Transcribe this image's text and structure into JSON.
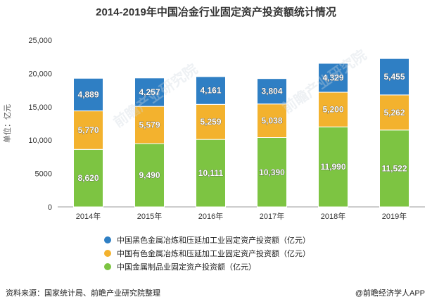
{
  "chart_data": {
    "type": "bar",
    "stacked": true,
    "title": "2014-2019年中国冶金行业固定资产投资额统计情况",
    "ylabel": "单位：亿元",
    "xlabel": "",
    "ylim": [
      0,
      25000
    ],
    "yticks": [
      0,
      5000,
      10000,
      15000,
      20000,
      25000
    ],
    "ytick_labels": [
      "0",
      "5000",
      "10,000",
      "15,000",
      "20,000",
      "25,000"
    ],
    "categories": [
      "2014年",
      "2015年",
      "2016年",
      "2017年",
      "2018年",
      "2019年"
    ],
    "series": [
      {
        "name": "中国金属制品业固定资产投资额（亿元）",
        "color": "#7dc442",
        "values": [
          8620,
          9490,
          10111,
          10390,
          11990,
          11522
        ],
        "labels": [
          "8,620",
          "9,490",
          "10,111",
          "10,390",
          "11,990",
          "11,522"
        ]
      },
      {
        "name": "中国有色金属冶炼和压延加工业固定资产投资额（亿元）",
        "color": "#f3b22e",
        "values": [
          5770,
          5579,
          5259,
          5038,
          5200,
          5262
        ],
        "labels": [
          "5,770",
          "5,579",
          "5,259",
          "5,038",
          "5,200",
          "5,262"
        ]
      },
      {
        "name": "中国黑色金属冶炼和压延加工业固定资产投资额（亿元）",
        "color": "#2f7fc4",
        "values": [
          4889,
          4257,
          4161,
          3804,
          4329,
          5455
        ],
        "labels": [
          "4,889",
          "4,257",
          "4,161",
          "3,804",
          "4,329",
          "5,455"
        ]
      }
    ],
    "legend_position": "bottom",
    "grid": false
  },
  "legend_order": [
    2,
    1,
    0
  ],
  "source": "资料来源：国家统计局、前瞻产业研究院整理",
  "credit": "@前瞻经济学人APP",
  "watermark_text": "前瞻产业研究院"
}
